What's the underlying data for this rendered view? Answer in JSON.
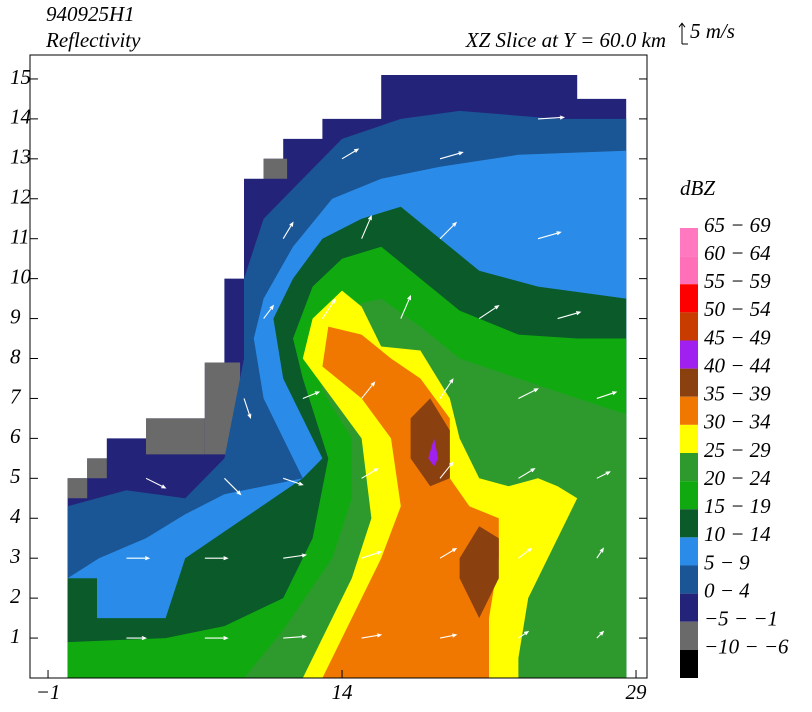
{
  "chart_data": {
    "type": "contour",
    "title": "940925H1",
    "subtitle": "Reflectivity",
    "annotation": "XZ Slice at Y = 60.0 km",
    "vector_key": {
      "label": "5 m/s",
      "value": 5
    },
    "legend_title": "dBZ",
    "xlim": [
      -1.92,
      29.56
    ],
    "ylim": [
      0,
      15.6
    ],
    "xticks": [
      {
        "value": -1,
        "label": "−1"
      },
      14,
      29
    ],
    "yticks": [
      1,
      2,
      3,
      4,
      5,
      6,
      7,
      8,
      9,
      10,
      11,
      12,
      13,
      14,
      15
    ],
    "levels": [
      {
        "label": "65 − 69",
        "color": "#ff78c0"
      },
      {
        "label": "60 − 64",
        "color": "#ff70b8"
      },
      {
        "label": "55 − 59",
        "color": "#ff0000"
      },
      {
        "label": "50 − 54",
        "color": "#c83c00"
      },
      {
        "label": "45 − 49",
        "color": "#a020f0"
      },
      {
        "label": "40 − 44",
        "color": "#8b4010"
      },
      {
        "label": "35 − 39",
        "color": "#f07800"
      },
      {
        "label": "30 − 34",
        "color": "#ffff00"
      },
      {
        "label": "25 − 29",
        "color": "#2e9a2e"
      },
      {
        "label": "20 − 24",
        "color": "#10aa10"
      },
      {
        "label": "15 − 19",
        "color": "#0a5a2a"
      },
      {
        "label": "10 − 14",
        "color": "#2a8ce8"
      },
      {
        "label": "5 − 9",
        "color": "#1a5595"
      },
      {
        "label": "0 − 4",
        "color": "#23237a"
      },
      {
        "label": "−5 − −1",
        "color": "#6a6a6a"
      },
      {
        "label": "−10 − −6",
        "color": "#000000"
      }
    ],
    "regions": [
      {
        "level": 13,
        "points": [
          [
            0,
            0
          ],
          [
            0,
            5
          ],
          [
            1,
            5
          ],
          [
            1,
            5.5
          ],
          [
            2,
            5.5
          ],
          [
            2,
            6
          ],
          [
            4,
            6
          ],
          [
            4,
            6.5
          ],
          [
            7,
            6.5
          ],
          [
            7,
            7.9
          ],
          [
            8,
            7.9
          ],
          [
            8,
            10
          ],
          [
            9,
            10
          ],
          [
            9,
            12.5
          ],
          [
            10,
            12.5
          ],
          [
            10,
            13
          ],
          [
            11,
            13
          ],
          [
            11,
            13.5
          ],
          [
            13,
            13.5
          ],
          [
            13,
            14
          ],
          [
            16,
            14
          ],
          [
            16,
            15.1
          ],
          [
            26,
            15.1
          ],
          [
            26,
            14.5
          ],
          [
            28.5,
            14.5
          ],
          [
            28.5,
            0
          ]
        ]
      },
      {
        "level": 14,
        "points": [
          [
            0,
            4.5
          ],
          [
            1,
            4.5
          ],
          [
            1,
            5
          ],
          [
            0,
            5
          ]
        ]
      },
      {
        "level": 14,
        "points": [
          [
            1,
            5
          ],
          [
            2,
            5
          ],
          [
            2,
            5.5
          ],
          [
            1,
            5.5
          ]
        ]
      },
      {
        "level": 14,
        "points": [
          [
            4,
            5.6
          ],
          [
            7,
            5.6
          ],
          [
            7,
            6.5
          ],
          [
            4,
            6.5
          ]
        ]
      },
      {
        "level": 14,
        "points": [
          [
            7,
            5.6
          ],
          [
            8.8,
            5.6
          ],
          [
            8.8,
            7.9
          ],
          [
            7,
            7.9
          ]
        ]
      },
      {
        "level": 14,
        "points": [
          [
            10,
            12.5
          ],
          [
            11.2,
            12.5
          ],
          [
            11.2,
            13
          ],
          [
            10,
            13
          ]
        ]
      },
      {
        "level": 12,
        "points": [
          [
            0,
            0
          ],
          [
            0,
            4.3
          ],
          [
            3,
            4.7
          ],
          [
            6,
            4.5
          ],
          [
            8,
            5.5
          ],
          [
            9,
            8
          ],
          [
            9,
            10
          ],
          [
            10,
            11.5
          ],
          [
            12,
            12.5
          ],
          [
            14,
            13.5
          ],
          [
            17,
            14
          ],
          [
            20,
            14.2
          ],
          [
            25,
            14
          ],
          [
            28.5,
            14
          ],
          [
            28.5,
            0
          ]
        ]
      },
      {
        "level": 11,
        "points": [
          [
            0,
            0
          ],
          [
            0,
            2.5
          ],
          [
            1.6,
            3
          ],
          [
            4,
            3.5
          ],
          [
            6,
            4.1
          ],
          [
            8,
            4.6
          ],
          [
            12,
            5
          ],
          [
            10,
            7
          ],
          [
            9.5,
            8.5
          ],
          [
            10,
            9.5
          ],
          [
            11.5,
            10.8
          ],
          [
            13.5,
            12
          ],
          [
            16,
            12.5
          ],
          [
            19,
            12.8
          ],
          [
            23,
            13.1
          ],
          [
            28.5,
            13.2
          ],
          [
            28.5,
            0
          ]
        ]
      },
      {
        "level": 10,
        "points": [
          [
            0,
            0
          ],
          [
            0,
            2.5
          ],
          [
            1.5,
            2.5
          ],
          [
            1.5,
            1.5
          ],
          [
            5,
            1.5
          ],
          [
            6,
            3
          ],
          [
            9,
            4
          ],
          [
            12,
            5
          ],
          [
            13,
            5.5
          ],
          [
            11,
            7.5
          ],
          [
            10.5,
            9
          ],
          [
            11.5,
            10
          ],
          [
            13,
            11
          ],
          [
            15,
            11.5
          ],
          [
            17,
            11.8
          ],
          [
            19,
            11
          ],
          [
            21,
            10.2
          ],
          [
            24,
            9.8
          ],
          [
            28.5,
            9.5
          ],
          [
            28.5,
            0
          ]
        ]
      },
      {
        "level": 9,
        "points": [
          [
            0,
            0
          ],
          [
            0,
            0.9
          ],
          [
            5,
            1
          ],
          [
            8,
            1.3
          ],
          [
            11,
            2
          ],
          [
            12.5,
            3.5
          ],
          [
            13.3,
            5.5
          ],
          [
            12,
            7.5
          ],
          [
            11.5,
            8.5
          ],
          [
            12.5,
            9.8
          ],
          [
            14,
            10.5
          ],
          [
            16,
            10.8
          ],
          [
            18,
            10
          ],
          [
            20,
            9.2
          ],
          [
            23,
            8.6
          ],
          [
            26,
            8.5
          ],
          [
            28.5,
            8.5
          ],
          [
            28.5,
            0
          ]
        ]
      },
      {
        "level": 8,
        "points": [
          [
            9,
            0
          ],
          [
            11,
            1.2
          ],
          [
            13.5,
            3
          ],
          [
            14.5,
            4.5
          ],
          [
            14.5,
            6
          ],
          [
            13,
            7.2
          ],
          [
            12.5,
            8.5
          ],
          [
            13.5,
            9.2
          ],
          [
            16,
            9.5
          ],
          [
            18,
            8.8
          ],
          [
            20,
            8
          ],
          [
            23,
            7.5
          ],
          [
            26,
            7
          ],
          [
            28.5,
            6.6
          ],
          [
            28.5,
            0
          ]
        ]
      },
      {
        "level": 7,
        "points": [
          [
            12,
            0
          ],
          [
            13,
            1
          ],
          [
            14.5,
            2.5
          ],
          [
            15.5,
            4
          ],
          [
            15,
            6
          ],
          [
            13.5,
            7
          ],
          [
            12,
            8
          ],
          [
            12.5,
            9
          ],
          [
            14,
            9.7
          ],
          [
            15,
            9.3
          ],
          [
            16,
            8.3
          ],
          [
            18,
            8.2
          ],
          [
            19.5,
            7
          ],
          [
            20,
            6
          ],
          [
            21,
            5
          ],
          [
            22.5,
            4.8
          ],
          [
            24,
            5
          ],
          [
            25,
            4.8
          ],
          [
            26,
            4.5
          ],
          [
            25,
            3.5
          ],
          [
            23.5,
            2
          ],
          [
            23,
            0.5
          ],
          [
            23,
            0
          ]
        ]
      },
      {
        "level": 6,
        "points": [
          [
            13,
            0
          ],
          [
            14.5,
            1.5
          ],
          [
            16,
            3
          ],
          [
            17,
            4.3
          ],
          [
            16.5,
            6
          ],
          [
            15,
            7
          ],
          [
            13,
            7.8
          ],
          [
            13.3,
            8.8
          ],
          [
            15,
            8.6
          ],
          [
            16.5,
            8
          ],
          [
            18,
            7.5
          ],
          [
            19.5,
            6.5
          ],
          [
            19.5,
            5
          ],
          [
            20.5,
            4.3
          ],
          [
            22,
            4
          ],
          [
            22,
            3
          ],
          [
            21.5,
            1.5
          ],
          [
            21.5,
            0
          ]
        ]
      },
      {
        "level": 5,
        "points": [
          [
            17.5,
            6.5
          ],
          [
            18.5,
            7
          ],
          [
            19.5,
            6.2
          ],
          [
            19.5,
            5
          ],
          [
            18.5,
            4.8
          ],
          [
            17.5,
            5.5
          ]
        ]
      },
      {
        "level": 5,
        "points": [
          [
            20,
            2.5
          ],
          [
            21,
            1.5
          ],
          [
            22,
            2.5
          ],
          [
            22,
            3.5
          ],
          [
            21,
            3.8
          ],
          [
            20,
            3
          ]
        ]
      },
      {
        "level": 4,
        "points": [
          [
            18.4,
            5.5
          ],
          [
            18.7,
            6
          ],
          [
            18.9,
            5.5
          ],
          [
            18.7,
            5.3
          ]
        ]
      }
    ],
    "vectors": [
      [
        3,
        1,
        6,
        0
      ],
      [
        7,
        1,
        7,
        0
      ],
      [
        11,
        1,
        7,
        0.5
      ],
      [
        15,
        1,
        6,
        1
      ],
      [
        19,
        1,
        5,
        1
      ],
      [
        23,
        1,
        3,
        2
      ],
      [
        27,
        1,
        2,
        2
      ],
      [
        3,
        3,
        7,
        0
      ],
      [
        7,
        3,
        7,
        0
      ],
      [
        11,
        3,
        7,
        1
      ],
      [
        15,
        3,
        6,
        2
      ],
      [
        19,
        3,
        5,
        3
      ],
      [
        23,
        3,
        4,
        3
      ],
      [
        27,
        3,
        2,
        3
      ],
      [
        4,
        5,
        6,
        -3
      ],
      [
        8,
        5,
        5,
        -5
      ],
      [
        11,
        5,
        6,
        -2
      ],
      [
        15,
        5,
        5,
        3
      ],
      [
        19,
        5,
        4,
        5
      ],
      [
        23,
        5,
        5,
        3
      ],
      [
        27,
        5,
        4,
        2
      ],
      [
        9,
        7,
        2,
        -6
      ],
      [
        12,
        7,
        5,
        2
      ],
      [
        15,
        7,
        4,
        5
      ],
      [
        19,
        7,
        4,
        6
      ],
      [
        23,
        7,
        6,
        3
      ],
      [
        27,
        7,
        6,
        2
      ],
      [
        10,
        9,
        3,
        4
      ],
      [
        13,
        9,
        4,
        6
      ],
      [
        17,
        9,
        3,
        7
      ],
      [
        21,
        9,
        6,
        4
      ],
      [
        25,
        9,
        7,
        2
      ],
      [
        11,
        11,
        3,
        5
      ],
      [
        15,
        11,
        3,
        7
      ],
      [
        19,
        11,
        5,
        5
      ],
      [
        24,
        11,
        7,
        2
      ],
      [
        14,
        13,
        5,
        3
      ],
      [
        19,
        13,
        7,
        2
      ],
      [
        24,
        14,
        8,
        0.5
      ]
    ]
  }
}
